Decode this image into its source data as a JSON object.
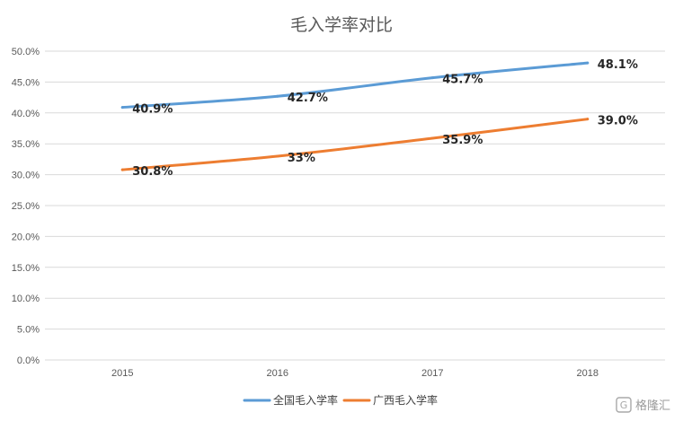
{
  "chart_data": {
    "type": "line",
    "title": "毛入学率对比",
    "categories": [
      "2015",
      "2016",
      "2017",
      "2018"
    ],
    "y_ticks": [
      "0.0%",
      "5.0%",
      "10.0%",
      "15.0%",
      "20.0%",
      "25.0%",
      "30.0%",
      "35.0%",
      "40.0%",
      "45.0%",
      "50.0%"
    ],
    "ylim": [
      0,
      50
    ],
    "grid": true,
    "legend_position": "bottom",
    "series": [
      {
        "name": "全国毛入学率",
        "color": "#5B9BD5",
        "values": [
          40.9,
          42.7,
          45.7,
          48.1
        ],
        "labels": [
          "40.9%",
          "42.7%",
          "45.7%",
          "48.1%"
        ]
      },
      {
        "name": "广西毛入学率",
        "color": "#ED7D31",
        "values": [
          30.8,
          33,
          35.9,
          39.0
        ],
        "labels": [
          "30.8%",
          "33%",
          "35.9%",
          "39.0%"
        ]
      }
    ]
  },
  "watermark": {
    "text": "格隆汇",
    "icon": "gelonghui-logo-icon"
  }
}
